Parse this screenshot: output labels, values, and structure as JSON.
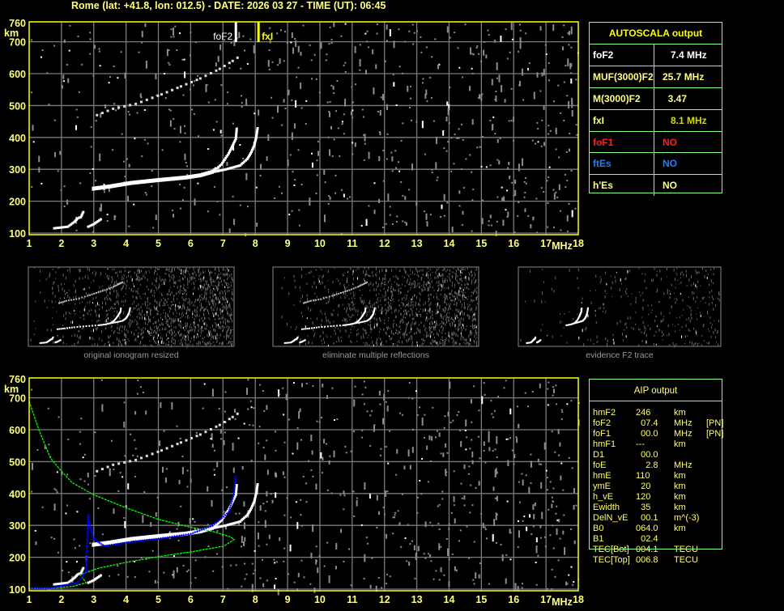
{
  "header": {
    "title": "Rome (lat: +41.8, lon: 012.5) - DATE: 2026 03 27 - TIME (UT): 06:45"
  },
  "colors": {
    "text": "#ffff80",
    "axis": "#ffff00",
    "grid": "#7a7a7a",
    "table_border": "#80ff80",
    "trace": "#ffffff",
    "noise": "#8c8c8c",
    "profile": "#00ff00",
    "aip_points": "#0000ff",
    "foF1": "#ff2020",
    "ftEs": "#1e7fff",
    "fxI": "#d8d800"
  },
  "autoscala": {
    "title": "AUTOSCALA output",
    "rows": [
      {
        "key": "foF2",
        "value": "   7.4 MHz",
        "key_color": "#ffffff",
        "value_color": "#ffffff"
      },
      {
        "key": "MUF(3000)F2",
        "value": "25.7 MHz",
        "key_color": "#ffff80",
        "value_color": "#ffff80"
      },
      {
        "key": "M(3000)F2",
        "value": "  3.47",
        "key_color": "#ffff80",
        "value_color": "#ffff80"
      },
      {
        "key": "fxI",
        "value": "   8.1 MHz",
        "key_color": "#ffff80",
        "value_color": "#d8d800"
      },
      {
        "key": "foF1",
        "value": "NO",
        "key_color": "#ff2020",
        "value_color": "#ff2020"
      },
      {
        "key": "ftEs",
        "value": "NO",
        "key_color": "#1e7fff",
        "value_color": "#1e7fff"
      },
      {
        "key": "h'Es",
        "value": "NO",
        "key_color": "#ffff80",
        "value_color": "#ffff80"
      }
    ]
  },
  "aip": {
    "title": "AIP output",
    "rows": [
      [
        "hmF2",
        "246",
        "km",
        ""
      ],
      [
        "foF2",
        "  07.4",
        "MHz",
        "[PN]"
      ],
      [
        "foF1",
        "  00.0",
        "MHz",
        "[PN]"
      ],
      [
        "hmF1",
        "---",
        "km",
        ""
      ],
      [
        "D1",
        "  00.0",
        "",
        ""
      ],
      [
        "foE",
        "    2.8",
        "MHz",
        ""
      ],
      [
        "hmE",
        "110",
        "km",
        ""
      ],
      [
        "ymE",
        "  20",
        "km",
        ""
      ],
      [
        "h_vE",
        "120",
        "km",
        ""
      ],
      [
        "Ewidth",
        "  35",
        "km",
        ""
      ],
      [
        "DelN_vE",
        "  00.1",
        "m^(-3)",
        ""
      ],
      [
        "B0",
        "064.0",
        "km",
        ""
      ],
      [
        "B1",
        "  02.4",
        "",
        ""
      ],
      [
        "TEC[Bot]",
        "004.1",
        "TECU",
        ""
      ],
      [
        "TEC[Top]",
        "006.8",
        "TECU",
        ""
      ]
    ]
  },
  "thumbnails": [
    {
      "caption": "original ionogram resized"
    },
    {
      "caption": "eliminate multiple reflections"
    },
    {
      "caption": "evidence F2 trace"
    }
  ],
  "chart_data": [
    {
      "type": "scatter",
      "title": "",
      "xlabel": "MHz",
      "ylabel": "km",
      "xlim": [
        1,
        18
      ],
      "ylim": [
        100,
        760
      ],
      "xticks": [
        1,
        2,
        3,
        4,
        5,
        6,
        7,
        8,
        9,
        10,
        11,
        12,
        13,
        14,
        15,
        16,
        17,
        18
      ],
      "yticks": [
        100,
        200,
        300,
        400,
        500,
        600,
        700,
        760
      ],
      "grid": true,
      "markers": [
        {
          "label": "foF2",
          "freq": 7.4,
          "color": "#ffffff"
        },
        {
          "label": "fxI",
          "freq": 8.1,
          "color": "#ffff00"
        }
      ],
      "traces": {
        "o_trace": [
          [
            2.98,
            238
          ],
          [
            3.5,
            245
          ],
          [
            4.16,
            256
          ],
          [
            5.0,
            265
          ],
          [
            5.85,
            273
          ],
          [
            6.3,
            280
          ],
          [
            6.68,
            291
          ],
          [
            6.95,
            315
          ],
          [
            7.18,
            350
          ],
          [
            7.3,
            375
          ],
          [
            7.4,
            396
          ],
          [
            7.43,
            432
          ]
        ],
        "x_trace": [
          [
            6.68,
            291
          ],
          [
            7.1,
            300
          ],
          [
            7.53,
            312
          ],
          [
            7.75,
            332
          ],
          [
            7.86,
            350
          ],
          [
            7.97,
            375
          ],
          [
            8.03,
            401
          ],
          [
            8.08,
            434
          ]
        ],
        "e_trace": [
          [
            1.78,
            115
          ],
          [
            2.2,
            120
          ],
          [
            2.4,
            135
          ],
          [
            2.5,
            146
          ],
          [
            2.6,
            150
          ],
          [
            2.7,
            171
          ]
        ],
        "e_x_trace": [
          [
            2.83,
            120
          ],
          [
            3.0,
            128
          ],
          [
            3.26,
            146
          ]
        ],
        "multiple_reflection": [
          [
            3.1,
            470
          ],
          [
            3.6,
            490
          ],
          [
            4.3,
            505
          ],
          [
            5.1,
            535
          ],
          [
            5.7,
            560
          ],
          [
            6.3,
            585
          ],
          [
            6.9,
            615
          ],
          [
            7.3,
            640
          ],
          [
            7.6,
            660
          ]
        ]
      }
    },
    {
      "type": "scatter",
      "title": "",
      "xlabel": "MHz",
      "ylabel": "km",
      "xlim": [
        1,
        18
      ],
      "ylim": [
        100,
        760
      ],
      "xticks": [
        1,
        2,
        3,
        4,
        5,
        6,
        7,
        8,
        9,
        10,
        11,
        12,
        13,
        14,
        15,
        16,
        17,
        18
      ],
      "yticks": [
        100,
        200,
        300,
        400,
        500,
        600,
        700,
        760
      ],
      "grid": true,
      "electron_density_profile": [
        [
          1.0,
          689
        ],
        [
          1.3,
          600
        ],
        [
          1.66,
          511
        ],
        [
          2.0,
          470
        ],
        [
          2.33,
          434
        ],
        [
          3.0,
          396
        ],
        [
          4.0,
          355
        ],
        [
          5.0,
          319
        ],
        [
          6.0,
          294
        ],
        [
          6.68,
          281
        ],
        [
          7.2,
          265
        ],
        [
          7.35,
          256
        ],
        [
          7.03,
          235
        ],
        [
          6.02,
          217
        ],
        [
          5.0,
          202
        ],
        [
          4.0,
          184
        ],
        [
          3.16,
          166
        ],
        [
          2.58,
          146
        ],
        [
          2.76,
          120
        ],
        [
          2.33,
          108
        ],
        [
          1.66,
          103
        ],
        [
          1.0,
          103
        ]
      ],
      "aip_fitted_trace": [
        [
          1.0,
          103
        ],
        [
          1.66,
          103
        ],
        [
          2.5,
          120
        ],
        [
          2.76,
          154
        ],
        [
          2.83,
          332
        ],
        [
          2.9,
          291
        ],
        [
          3.0,
          256
        ],
        [
          3.34,
          235
        ],
        [
          4.16,
          248
        ],
        [
          5.0,
          258
        ],
        [
          6.0,
          273
        ],
        [
          6.68,
          299
        ],
        [
          7.18,
          342
        ],
        [
          7.33,
          396
        ],
        [
          7.4,
          460
        ]
      ]
    }
  ]
}
